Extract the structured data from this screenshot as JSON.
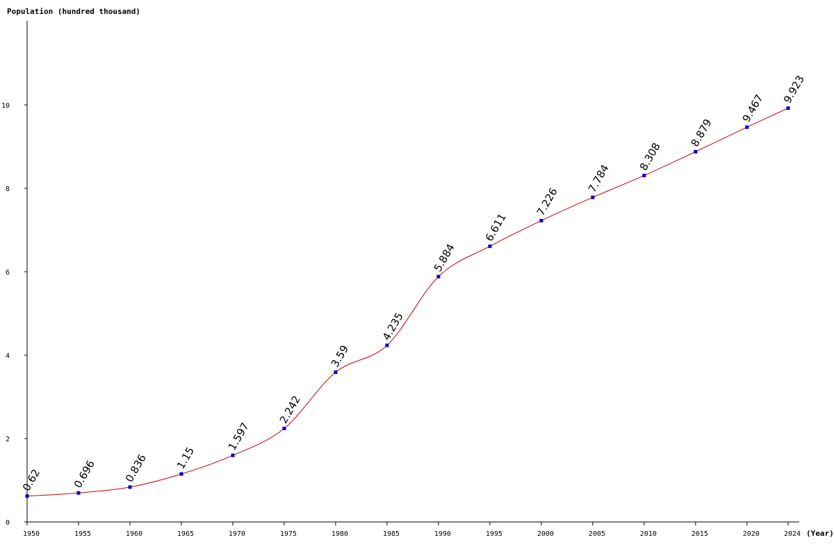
{
  "chart_data": {
    "type": "line",
    "ylabel": "Population (hundred thousand)",
    "xlabel": "(Year)",
    "x": [
      1950,
      1955,
      1960,
      1965,
      1970,
      1975,
      1980,
      1985,
      1990,
      1995,
      2000,
      2005,
      2010,
      2015,
      2020,
      2024
    ],
    "values": [
      0.62,
      0.696,
      0.836,
      1.15,
      1.597,
      2.242,
      3.59,
      4.235,
      5.884,
      6.611,
      7.226,
      7.784,
      8.308,
      8.879,
      9.467,
      9.923
    ],
    "value_labels": [
      "0.62",
      "0.696",
      "0.836",
      "1.15",
      "1.597",
      "2.242",
      "3.59",
      "4.235",
      "5.884",
      "6.611",
      "7.226",
      "7.784",
      "8.308",
      "8.879",
      "9.467",
      "9.923"
    ],
    "x_ticks": [
      "1950",
      "1955",
      "1960",
      "1965",
      "1970",
      "1975",
      "1980",
      "1985",
      "1990",
      "1995",
      "2000",
      "2005",
      "2010",
      "2015",
      "2020",
      "2024"
    ],
    "y_ticks": [
      0,
      2,
      4,
      6,
      8,
      10
    ],
    "ylim": [
      0,
      12
    ],
    "xlim": [
      1950,
      2024
    ],
    "grid": false,
    "line_color": "#cc0000",
    "marker_color": "#0000cc"
  }
}
